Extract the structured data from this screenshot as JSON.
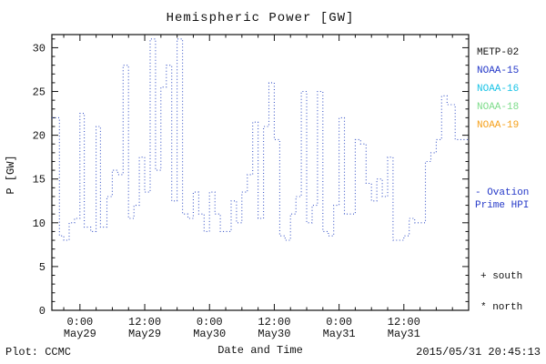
{
  "title": "Hemispheric Power [GW]",
  "ylabel": "P [GW]",
  "xlabel": "Date and Time",
  "footer": {
    "left": "Plot: CCMC",
    "right": "2015/05/31 20:45:13"
  },
  "legend": {
    "satellites": [
      {
        "label": "METP-02",
        "color": "#111111"
      },
      {
        "label": "NOAA-15",
        "color": "#2438c8"
      },
      {
        "label": "NOAA-16",
        "color": "#19c3e6"
      },
      {
        "label": "NOAA-18",
        "color": "#7ddc8a"
      },
      {
        "label": "NOAA-19",
        "color": "#f5a11c"
      }
    ],
    "ovation": {
      "line1": "- Ovation",
      "line2": "Prime HPI",
      "color": "#2438c8"
    },
    "markers": {
      "south": "+ south",
      "north": "* north"
    }
  },
  "chart_data": {
    "type": "line",
    "style": "dotted-step",
    "series_name": "Ovation Prime HPI",
    "color": "#3a56c8",
    "axis_color": "#111111",
    "title": "Hemispheric Power [GW]",
    "xlabel": "Date and Time",
    "ylabel": "P [GW]",
    "ylim": [
      0,
      31.5
    ],
    "xlim_hours": [
      -5.2,
      72
    ],
    "yticks": [
      0,
      5,
      10,
      15,
      20,
      25,
      30
    ],
    "xticks": [
      {
        "hours": 0,
        "time": "0:00",
        "date": "May29"
      },
      {
        "hours": 12,
        "time": "12:00",
        "date": "May29"
      },
      {
        "hours": 24,
        "time": "0:00",
        "date": "May30"
      },
      {
        "hours": 36,
        "time": "12:00",
        "date": "May30"
      },
      {
        "hours": 48,
        "time": "0:00",
        "date": "May31"
      },
      {
        "hours": 60,
        "time": "12:00",
        "date": "May31"
      }
    ],
    "x_hours": [
      -5.2,
      -4.5,
      -3.8,
      -3,
      -2,
      -1,
      0,
      0.8,
      2,
      3,
      3.8,
      5,
      6,
      7,
      8,
      9,
      10,
      11,
      12,
      13,
      14,
      15,
      16,
      17,
      18,
      19,
      20,
      21,
      22,
      23,
      24,
      25,
      26,
      27,
      28,
      29,
      30,
      31,
      32,
      33,
      34,
      35,
      36,
      37,
      38,
      39,
      40,
      41,
      42,
      43,
      44,
      45,
      46,
      47,
      48,
      49,
      50,
      51,
      52,
      53,
      54,
      55,
      56,
      57,
      58,
      59,
      60,
      61,
      62,
      63,
      64,
      65,
      66,
      67,
      68,
      69.5,
      72
    ],
    "values": [
      22,
      22,
      8.5,
      8,
      10,
      10.5,
      22.5,
      9.5,
      9,
      21,
      9.5,
      13,
      16,
      15.5,
      28,
      10.5,
      12,
      17.5,
      13.5,
      31,
      16,
      25.5,
      28,
      12.5,
      31,
      11,
      10.5,
      13.5,
      11,
      9,
      13.5,
      11,
      9,
      9,
      12.5,
      10,
      13.5,
      15.5,
      21.5,
      10.5,
      21,
      26,
      19.5,
      8.5,
      8,
      11,
      13,
      25,
      10,
      12,
      25,
      9,
      8.5,
      12,
      22,
      11,
      11,
      19.5,
      19,
      14.5,
      12.5,
      15,
      13,
      17.5,
      8,
      8,
      8.5,
      10.5,
      10,
      10,
      17,
      18,
      19.5,
      24.5,
      23.5,
      19.5,
      19.5
    ]
  }
}
